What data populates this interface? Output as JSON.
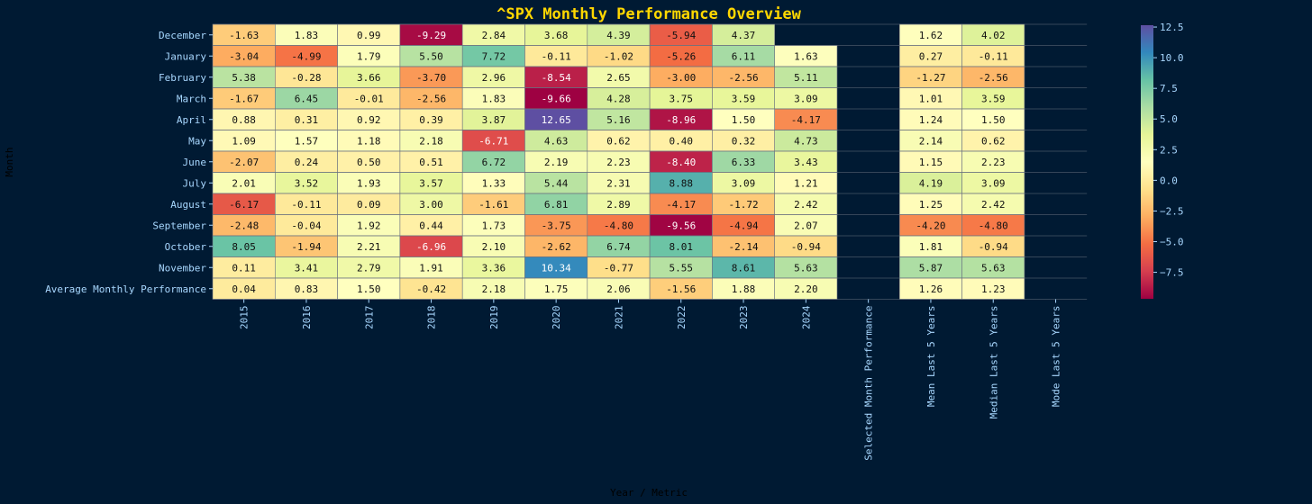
{
  "chart_data": {
    "type": "heatmap",
    "title": "^SPX Monthly Performance Overview",
    "xlabel": "Year / Metric",
    "ylabel": "Month",
    "columns": [
      "2015",
      "2016",
      "2017",
      "2018",
      "2019",
      "2020",
      "2021",
      "2022",
      "2023",
      "2024",
      "Selected Month Performance",
      "Mean Last 5 Years",
      "Median Last 5 Years",
      "Mode Last 5 Years"
    ],
    "rows": [
      "December",
      "January",
      "February",
      "March",
      "April",
      "May",
      "June",
      "July",
      "August",
      "September",
      "October",
      "November",
      "Average Monthly Performance"
    ],
    "values": [
      [
        -1.63,
        1.83,
        0.99,
        -9.29,
        2.84,
        3.68,
        4.39,
        -5.94,
        4.37,
        null,
        null,
        1.62,
        4.02,
        null
      ],
      [
        -3.04,
        -4.99,
        1.79,
        5.5,
        7.72,
        -0.11,
        -1.02,
        -5.26,
        6.11,
        1.63,
        null,
        0.27,
        -0.11,
        null
      ],
      [
        5.38,
        -0.28,
        3.66,
        -3.7,
        2.96,
        -8.54,
        2.65,
        -3.0,
        -2.56,
        5.11,
        null,
        -1.27,
        -2.56,
        null
      ],
      [
        -1.67,
        6.45,
        -0.01,
        -2.56,
        1.83,
        -9.66,
        4.28,
        3.75,
        3.59,
        3.09,
        null,
        1.01,
        3.59,
        null
      ],
      [
        0.88,
        0.31,
        0.92,
        0.39,
        3.87,
        12.65,
        5.16,
        -8.96,
        1.5,
        -4.17,
        null,
        1.24,
        1.5,
        null
      ],
      [
        1.09,
        1.57,
        1.18,
        2.18,
        -6.71,
        4.63,
        0.62,
        0.4,
        0.32,
        4.73,
        null,
        2.14,
        0.62,
        null
      ],
      [
        -2.07,
        0.24,
        0.5,
        0.51,
        6.72,
        2.19,
        2.23,
        -8.4,
        6.33,
        3.43,
        null,
        1.15,
        2.23,
        null
      ],
      [
        2.01,
        3.52,
        1.93,
        3.57,
        1.33,
        5.44,
        2.31,
        8.88,
        3.09,
        1.21,
        null,
        4.19,
        3.09,
        null
      ],
      [
        -6.17,
        -0.11,
        0.09,
        3.0,
        -1.61,
        6.81,
        2.89,
        -4.17,
        -1.72,
        2.42,
        null,
        1.25,
        2.42,
        null
      ],
      [
        -2.48,
        -0.04,
        1.92,
        0.44,
        1.73,
        -3.75,
        -4.8,
        -9.56,
        -4.94,
        2.07,
        null,
        -4.2,
        -4.8,
        null
      ],
      [
        8.05,
        -1.94,
        2.21,
        -6.96,
        2.1,
        -2.62,
        6.74,
        8.01,
        -2.14,
        -0.94,
        null,
        1.81,
        -0.94,
        null
      ],
      [
        0.11,
        3.41,
        2.79,
        1.91,
        3.36,
        10.34,
        -0.77,
        5.55,
        8.61,
        5.63,
        null,
        5.87,
        5.63,
        null
      ],
      [
        0.04,
        0.83,
        1.5,
        -0.42,
        2.18,
        1.75,
        2.06,
        -1.56,
        1.88,
        2.2,
        null,
        1.26,
        1.23,
        null
      ]
    ],
    "colorbar": {
      "min": -9.66,
      "max": 12.65,
      "ticks": [
        12.5,
        10.0,
        7.5,
        5.0,
        2.5,
        0.0,
        -2.5,
        -5.0,
        -7.5
      ],
      "tick_labels": [
        "12.5",
        "10.0",
        "7.5",
        "5.0",
        "2.5",
        "0.0",
        "−2.5",
        "−5.0",
        "−7.5"
      ],
      "colormap": "Spectral"
    },
    "colors": {
      "background": "#001a33",
      "title": "#ffd700",
      "ticks": "#a8d8ff",
      "axis_label": "#000000",
      "grid": "#6b7280"
    }
  }
}
